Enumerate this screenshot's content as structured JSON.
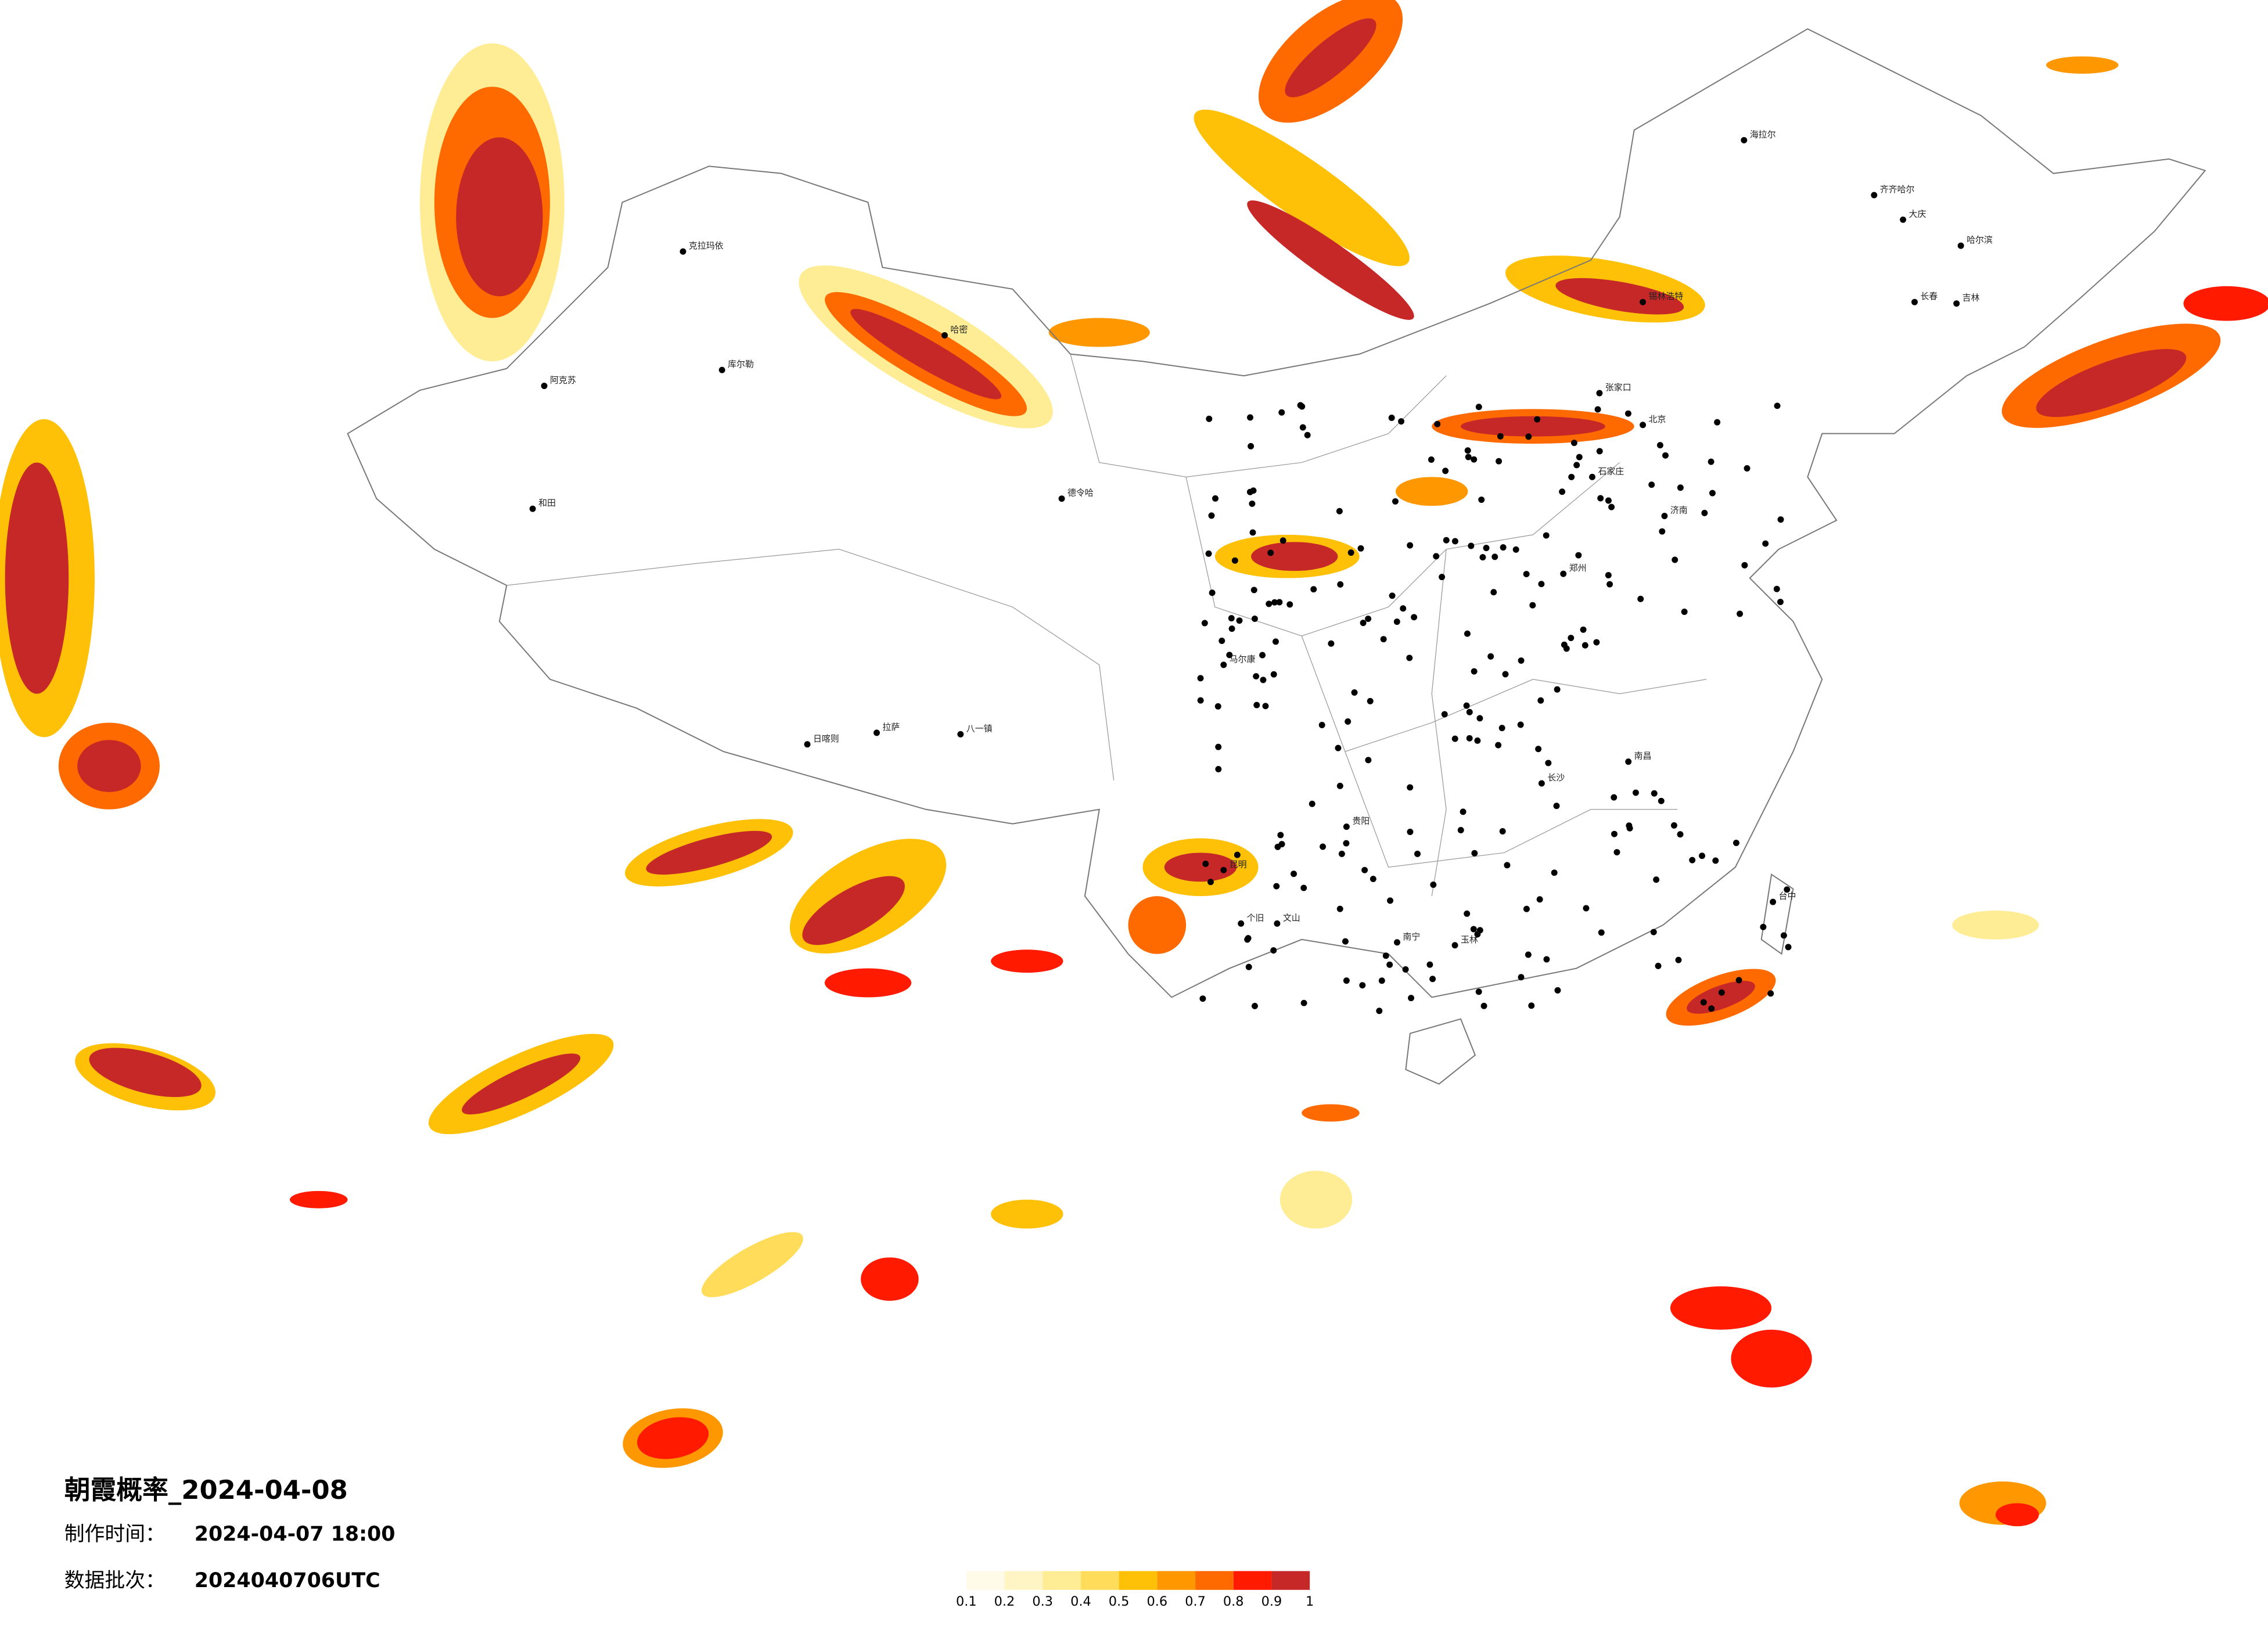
{
  "title": "朝霞概率_2024-04-08",
  "made_label": "制作时间：",
  "made_time": "2024-04-07 18:00",
  "batch_label": "数据批次：",
  "batch": "2024040706UTC",
  "legend": {
    "ticks": [
      0.1,
      0.2,
      0.3,
      0.4,
      0.5,
      0.6,
      0.7,
      0.8,
      0.9,
      1
    ],
    "colors": [
      "#fffbe8",
      "#fff5c4",
      "#ffed95",
      "#ffdc5a",
      "#ffc107",
      "#ff9800",
      "#ff6a00",
      "#ff1a00",
      "#c62828"
    ]
  },
  "cities": [
    "克拉玛依",
    "阿克苏",
    "和田",
    "哈密",
    "库尔勒",
    "德令哈",
    "日喀则",
    "拉萨",
    "八一镇",
    "马尔康",
    "海拉尔",
    "齐齐哈尔",
    "大庆",
    "哈尔滨",
    "长春",
    "吉林",
    "锡林浩特",
    "北京",
    "张家口",
    "石家庄",
    "济南",
    "郑州",
    "南昌",
    "长沙",
    "贵阳",
    "昆明",
    "南宁",
    "玉林",
    "台中",
    "文山",
    "个旧"
  ]
}
